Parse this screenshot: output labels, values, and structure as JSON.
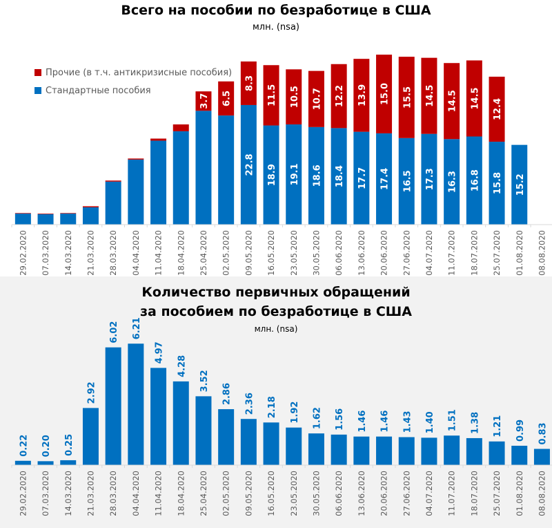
{
  "colors": {
    "standard": "#0070c0",
    "other": "#c00000",
    "bottom_bar": "#0070c0",
    "bottom_label": "#0070c0",
    "axis": "#d9d9d9",
    "tick_text": "#595959"
  },
  "chart_data": [
    {
      "type": "bar",
      "stacked": true,
      "title": "Всего на пособии по безработице в США",
      "subtitle": "млн. (nsa)",
      "legend_position": "top-left",
      "categories": [
        "29.02.2020",
        "07.03.2020",
        "14.03.2020",
        "21.03.2020",
        "28.03.2020",
        "04.04.2020",
        "11.04.2020",
        "18.04.2020",
        "25.04.2020",
        "02.05.2020",
        "09.05.2020",
        "16.05.2020",
        "23.05.2020",
        "30.05.2020",
        "06.06.2020",
        "13.06.2020",
        "20.06.2020",
        "27.06.2020",
        "04.07.2020",
        "11.07.2020",
        "18.07.2020",
        "25.07.2020",
        "01.08.2020",
        "08.08.2020"
      ],
      "series": [
        {
          "name": "Стандартные пособия",
          "key": "standard",
          "values": [
            2.1,
            2.0,
            2.1,
            3.3,
            8.2,
            12.4,
            16.0,
            17.8,
            21.7,
            20.8,
            22.8,
            18.9,
            19.1,
            18.6,
            18.4,
            17.7,
            17.4,
            16.5,
            17.3,
            16.3,
            16.8,
            15.8,
            15.2,
            null
          ],
          "labels": [
            null,
            null,
            null,
            null,
            null,
            null,
            null,
            null,
            null,
            null,
            "22.8",
            "18.9",
            "19.1",
            "18.6",
            "18.4",
            "17.7",
            "17.4",
            "16.5",
            "17.3",
            "16.3",
            "16.8",
            "15.8",
            "15.2",
            null
          ]
        },
        {
          "name": "Прочие (в т.ч. антикризисные пособия)",
          "key": "other",
          "values": [
            0.1,
            0.1,
            0.1,
            0.2,
            0.2,
            0.2,
            0.4,
            1.3,
            3.7,
            6.5,
            8.3,
            11.5,
            10.5,
            10.7,
            12.2,
            13.9,
            15.0,
            15.5,
            14.5,
            14.5,
            14.5,
            12.4,
            null,
            null
          ],
          "labels": [
            null,
            null,
            null,
            null,
            null,
            null,
            null,
            null,
            "3.7",
            "6.5",
            "8.3",
            "11.5",
            "10.5",
            "10.7",
            "12.2",
            "13.9",
            "15.0",
            "15.5",
            "14.5",
            "14.5",
            "14.5",
            "12.4",
            null,
            null
          ]
        }
      ],
      "xlabel": "",
      "ylabel": "",
      "ylim": [
        0,
        32
      ],
      "grid": false
    },
    {
      "type": "bar",
      "title_lines": [
        "Количество первичных обращений",
        "за пособием по безработице в США"
      ],
      "subtitle": "млн. (nsa)",
      "categories": [
        "29.02.2020",
        "07.03.2020",
        "14.03.2020",
        "21.03.2020",
        "28.03.2020",
        "04.04.2020",
        "11.04.2020",
        "18.04.2020",
        "25.04.2020",
        "02.05.2020",
        "09.05.2020",
        "16.05.2020",
        "23.05.2020",
        "30.05.2020",
        "06.06.2020",
        "13.06.2020",
        "20.06.2020",
        "27.06.2020",
        "04.07.2020",
        "11.07.2020",
        "18.07.2020",
        "25.07.2020",
        "01.08.2020",
        "08.08.2020"
      ],
      "values": [
        0.22,
        0.2,
        0.25,
        2.92,
        6.02,
        6.21,
        4.97,
        4.28,
        3.52,
        2.86,
        2.36,
        2.18,
        1.92,
        1.62,
        1.56,
        1.46,
        1.46,
        1.43,
        1.4,
        1.51,
        1.38,
        1.21,
        0.99,
        0.83
      ],
      "labels": [
        "0.22",
        "0.20",
        "0.25",
        "2.92",
        "6.02",
        "6.21",
        "4.97",
        "4.28",
        "3.52",
        "2.86",
        "2.36",
        "2.18",
        "1.92",
        "1.62",
        "1.56",
        "1.46",
        "1.46",
        "1.43",
        "1.40",
        "1.51",
        "1.38",
        "1.21",
        "0.99",
        "0.83"
      ],
      "xlabel": "",
      "ylabel": "",
      "ylim": [
        0,
        7.3
      ],
      "grid": false
    }
  ]
}
